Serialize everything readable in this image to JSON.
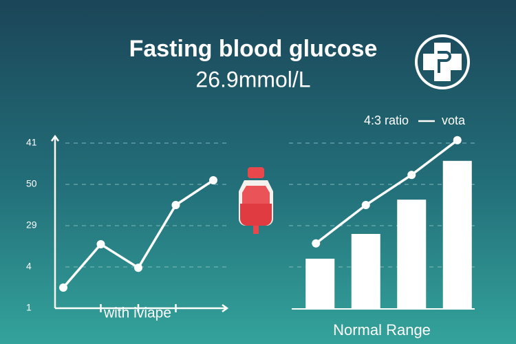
{
  "header": {
    "title": "Fasting blood glucose",
    "subtitle": "26.9mmol/L"
  },
  "chart_data": [
    {
      "type": "line",
      "xlabel": "with iviape",
      "categories": [
        null,
        null,
        null,
        null,
        null
      ],
      "series": [
        {
          "name": null,
          "color": "#ffffff",
          "values": [
            0.5,
            1.55,
            0.98,
            2.5,
            3.1
          ]
        }
      ],
      "ylim": [
        0,
        4
      ],
      "yticks": [
        {
          "value": 0,
          "label": "1"
        },
        {
          "value": 1,
          "label": "4"
        },
        {
          "value": 2,
          "label": "29"
        },
        {
          "value": 3,
          "label": "50"
        },
        {
          "value": 4,
          "label": "41"
        }
      ],
      "grid": true
    },
    {
      "type": "bar_line",
      "xlabel": "Normal Range",
      "categories": [
        null,
        null,
        null,
        null
      ],
      "series": [
        {
          "name": "4:3 ratio",
          "color": "#ffffff",
          "kind": "bar",
          "values": [
            1.2,
            1.8,
            2.63,
            3.57
          ]
        },
        {
          "name": "vota",
          "color": "#ffffff",
          "kind": "line",
          "values": [
            1.57,
            2.5,
            3.23,
            4.07
          ]
        }
      ],
      "ylim": [
        0,
        4
      ],
      "yticks": [
        1,
        2,
        3,
        4
      ],
      "show_tick_labels": false,
      "grid": true
    }
  ]
}
